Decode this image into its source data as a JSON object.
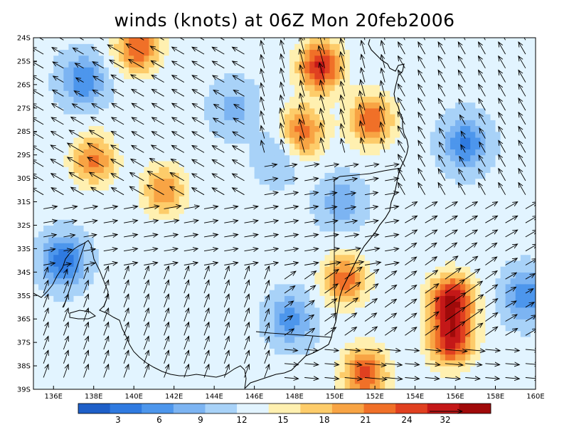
{
  "title": "winds (knots) at 06Z Mon 20feb2006",
  "latitude_labels": [
    "24S",
    "25S",
    "26S",
    "27S",
    "28S",
    "29S",
    "30S",
    "31S",
    "32S",
    "33S",
    "34S",
    "35S",
    "36S",
    "37S",
    "38S",
    "39S"
  ],
  "longitude_labels": [
    "136E",
    "138E",
    "140E",
    "142E",
    "144E",
    "146E",
    "148E",
    "150E",
    "152E",
    "154E",
    "156E",
    "158E",
    "160E"
  ],
  "color_scale": {
    "colors": [
      "#1e5fc8",
      "#2f7ae0",
      "#4d96ec",
      "#7cb4f2",
      "#a8d2f8",
      "#e2f4ff",
      "#fff0b0",
      "#fdcc6a",
      "#f8a444",
      "#f07028",
      "#e04020",
      "#c41818",
      "#a00a0a"
    ],
    "labels": [
      "3",
      "6",
      "9",
      "12",
      "15",
      "18",
      "21",
      "24"
    ],
    "reference_vector_label": "32"
  },
  "map_data": {
    "type": "wind_field_map",
    "units": "knots",
    "time": "06Z Mon 20feb2006",
    "lon_range": [
      135,
      160
    ],
    "lat_range": [
      -39,
      -24
    ],
    "speed_maxima": [
      {
        "lon": 141.5,
        "lat": -30.5,
        "speed": 22
      },
      {
        "lon": 138,
        "lat": -29.2,
        "speed": 23
      },
      {
        "lon": 149.3,
        "lat": -25.2,
        "speed": 28
      },
      {
        "lon": 151.8,
        "lat": -27.5,
        "speed": 25
      },
      {
        "lon": 140.2,
        "lat": -24.4,
        "speed": 25
      },
      {
        "lon": 150.5,
        "lat": -34.3,
        "speed": 24
      },
      {
        "lon": 151.5,
        "lat": -38.3,
        "speed": 26
      },
      {
        "lon": 155.8,
        "lat": -35.2,
        "speed": 30
      },
      {
        "lon": 155.8,
        "lat": -36.9,
        "speed": 28
      },
      {
        "lon": 148.4,
        "lat": -28.0,
        "speed": 24
      }
    ],
    "speed_minima": [
      {
        "lon": 136.5,
        "lat": -33.5,
        "speed": 3
      },
      {
        "lon": 137.5,
        "lat": -25.8,
        "speed": 5
      },
      {
        "lon": 156.5,
        "lat": -28.5,
        "speed": 4
      },
      {
        "lon": 159.5,
        "lat": -35.0,
        "speed": 5
      },
      {
        "lon": 145.0,
        "lat": -27.0,
        "speed": 9
      },
      {
        "lon": 147.8,
        "lat": -36.0,
        "speed": 6
      },
      {
        "lon": 150.3,
        "lat": -31.0,
        "speed": 8
      },
      {
        "lon": 147.2,
        "lat": -29.0,
        "speed": 9
      }
    ],
    "flow_regions": [
      {
        "lon": [
          135,
          146
        ],
        "lat": [
          -31,
          -24
        ],
        "direction_deg": 300
      },
      {
        "lon": [
          146,
          153
        ],
        "lat": [
          -29,
          -24
        ],
        "direction_deg": 345
      },
      {
        "lon": [
          153,
          160
        ],
        "lat": [
          -31,
          -24
        ],
        "direction_deg": 330
      },
      {
        "lon": [
          135,
          153
        ],
        "lat": [
          -34,
          -29
        ],
        "direction_deg": 80
      },
      {
        "lon": [
          147,
          158
        ],
        "lat": [
          -37,
          -33
        ],
        "direction_deg": 55
      },
      {
        "lon": [
          135,
          147
        ],
        "lat": [
          -39,
          -33
        ],
        "direction_deg": 20
      },
      {
        "lon": [
          147,
          160
        ],
        "lat": [
          -39,
          -37
        ],
        "direction_deg": 95
      }
    ]
  }
}
